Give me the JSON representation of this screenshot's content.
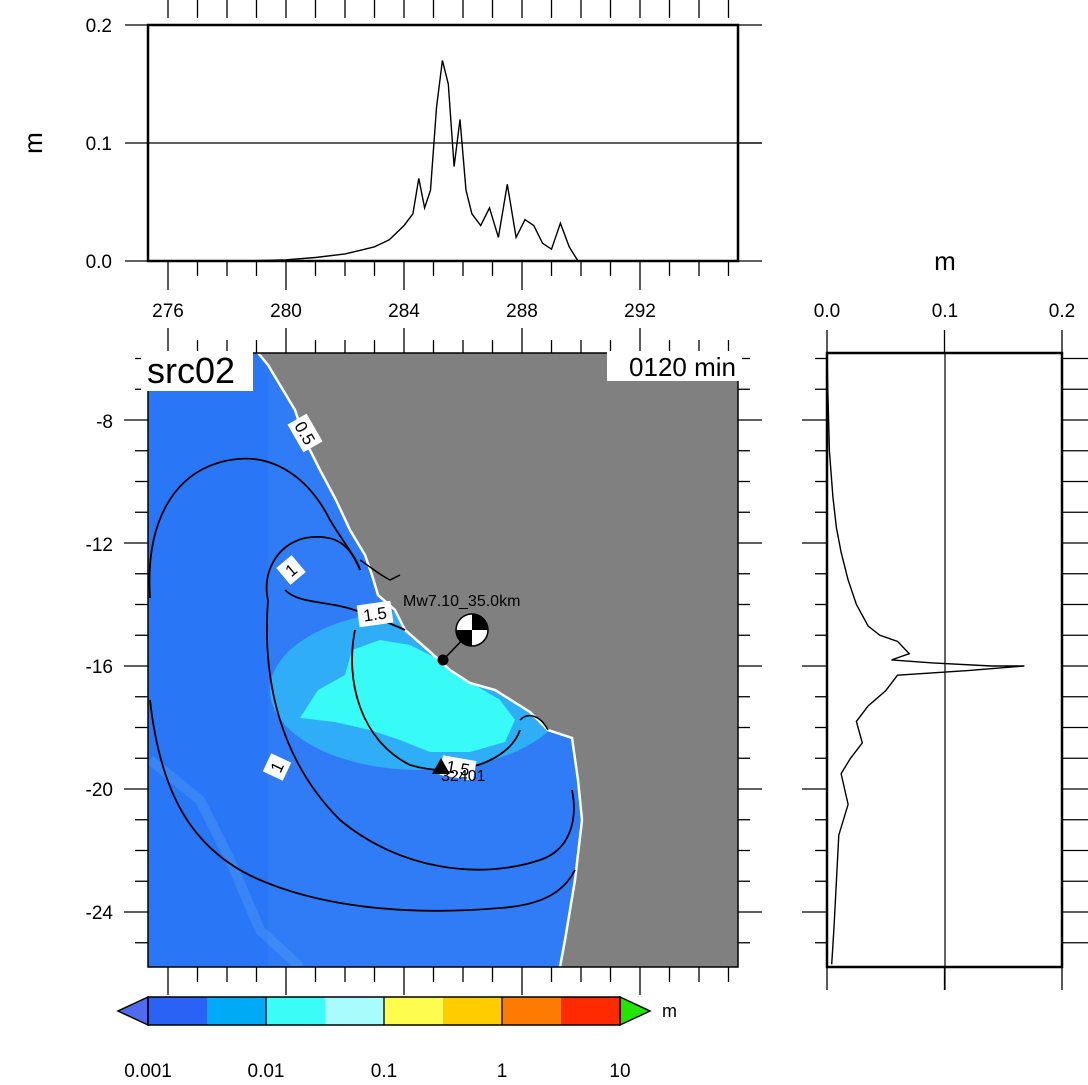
{
  "map": {
    "source_label": "src02",
    "time_label": "0120 min",
    "event_label": "Mw7.10_35.0km",
    "station_label": "32401",
    "lon_ticks": [
      "276",
      "280",
      "284",
      "288",
      "292"
    ],
    "lat_ticks": [
      "-8",
      "-12",
      "-16",
      "-20",
      "-24"
    ],
    "contour_labels": [
      "0.5",
      "1",
      "1.5",
      "1",
      "1.5"
    ],
    "land_color": "#808080",
    "ocean_color": "#2f7cf6",
    "coast_color": "#ffffff"
  },
  "top_profile": {
    "axis_title": "m",
    "y_ticks": [
      "0.0",
      "0.1",
      "0.2"
    ],
    "x_ticks": [
      "276",
      "280",
      "284",
      "288",
      "292"
    ]
  },
  "right_profile": {
    "axis_title": "m",
    "x_ticks": [
      "0.0",
      "0.1",
      "0.2"
    ]
  },
  "colorbar": {
    "unit": "m",
    "tick_labels": [
      "0.001",
      "0.01",
      "0.1",
      "1",
      "10"
    ],
    "colors": [
      "#2a62f5",
      "#00aaf5",
      "#3cfcf8",
      "#a8fdfc",
      "#fffc50",
      "#ffcc00",
      "#ff7a00",
      "#ff2a00"
    ],
    "under_color": "#4f6cf0",
    "over_color": "#22e600"
  },
  "chart_data": [
    {
      "type": "line",
      "title": "",
      "xlabel": "",
      "ylabel": "m",
      "xlim": [
        275.3,
        295.0
      ],
      "ylim": [
        0,
        0.2
      ],
      "grid": "line at 0.1",
      "series": [
        {
          "x": [
            278.5,
            280,
            281,
            282,
            282.5,
            283,
            283.5,
            284,
            284.3,
            284.5,
            284.7,
            284.9,
            285.1,
            285.3,
            285.5,
            285.7,
            285.9,
            286.1,
            286.3,
            286.6,
            286.9,
            287.2,
            287.5,
            287.8,
            288.1,
            288.4,
            288.7,
            289.0,
            289.3,
            289.6,
            289.9
          ],
          "y": [
            0.0,
            0.001,
            0.003,
            0.006,
            0.009,
            0.012,
            0.018,
            0.03,
            0.04,
            0.07,
            0.045,
            0.06,
            0.13,
            0.17,
            0.15,
            0.08,
            0.12,
            0.06,
            0.04,
            0.03,
            0.045,
            0.02,
            0.065,
            0.02,
            0.035,
            0.03,
            0.015,
            0.01,
            0.032,
            0.012,
            0.0
          ]
        }
      ]
    },
    {
      "type": "line",
      "title": "",
      "xlabel": "m",
      "ylabel": "",
      "xlim": [
        0,
        0.2
      ],
      "ylim": [
        -25.8,
        -5.9
      ],
      "grid": "line at 0.1",
      "series": [
        {
          "x": [
            0.0,
            0.002,
            0.005,
            0.008,
            0.012,
            0.018,
            0.025,
            0.035,
            0.045,
            0.06,
            0.07,
            0.055,
            0.09,
            0.14,
            0.168,
            0.12,
            0.06,
            0.05,
            0.035,
            0.025,
            0.03,
            0.02,
            0.012,
            0.018,
            0.01,
            0.008,
            0.006,
            0.004
          ],
          "y": [
            -6.0,
            -9.0,
            -10.5,
            -11.5,
            -12.3,
            -13.2,
            -14.0,
            -14.7,
            -15.0,
            -15.2,
            -15.6,
            -15.8,
            -15.9,
            -16.0,
            -16.0,
            -16.15,
            -16.3,
            -16.8,
            -17.3,
            -17.8,
            -18.5,
            -19.0,
            -19.5,
            -20.5,
            -21.5,
            -23.0,
            -24.5,
            -25.7
          ]
        }
      ]
    }
  ]
}
